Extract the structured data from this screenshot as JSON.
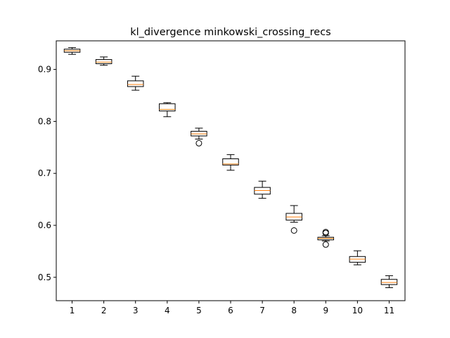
{
  "chart_data": {
    "type": "box",
    "title": "kl_divergence minkowski_crossing_recs",
    "xlabel": "",
    "ylabel": "",
    "categories": [
      "1",
      "2",
      "3",
      "4",
      "5",
      "6",
      "7",
      "8",
      "9",
      "10",
      "11"
    ],
    "ylim": [
      0.455,
      0.955
    ],
    "yticks": [
      0.5,
      0.6,
      0.7,
      0.8,
      0.9
    ],
    "grid": false,
    "colors": {
      "box": "#000000",
      "median": "#ff7f0e",
      "whisker": "#000000",
      "flier": "#000000"
    },
    "boxes": [
      {
        "whislo": 0.929,
        "q1": 0.933,
        "med": 0.936,
        "q3": 0.939,
        "whishi": 0.942,
        "fliers": []
      },
      {
        "whislo": 0.908,
        "q1": 0.911,
        "med": 0.914,
        "q3": 0.919,
        "whishi": 0.924,
        "fliers": []
      },
      {
        "whislo": 0.86,
        "q1": 0.867,
        "med": 0.871,
        "q3": 0.878,
        "whishi": 0.887,
        "fliers": []
      },
      {
        "whislo": 0.809,
        "q1": 0.82,
        "med": 0.823,
        "q3": 0.834,
        "whishi": 0.836,
        "fliers": []
      },
      {
        "whislo": 0.766,
        "q1": 0.772,
        "med": 0.776,
        "q3": 0.781,
        "whishi": 0.787,
        "fliers": [
          0.758
        ]
      },
      {
        "whislo": 0.706,
        "q1": 0.716,
        "med": 0.718,
        "q3": 0.728,
        "whishi": 0.736,
        "fliers": []
      },
      {
        "whislo": 0.652,
        "q1": 0.66,
        "med": 0.667,
        "q3": 0.673,
        "whishi": 0.685,
        "fliers": []
      },
      {
        "whislo": 0.606,
        "q1": 0.61,
        "med": 0.616,
        "q3": 0.623,
        "whishi": 0.638,
        "fliers": [
          0.59
        ]
      },
      {
        "whislo": 0.57,
        "q1": 0.572,
        "med": 0.575,
        "q3": 0.577,
        "whishi": 0.58,
        "fliers": [
          0.563,
          0.585,
          0.587
        ]
      },
      {
        "whislo": 0.524,
        "q1": 0.529,
        "med": 0.535,
        "q3": 0.54,
        "whishi": 0.551,
        "fliers": []
      },
      {
        "whislo": 0.48,
        "q1": 0.486,
        "med": 0.49,
        "q3": 0.496,
        "whishi": 0.503,
        "fliers": []
      }
    ]
  }
}
